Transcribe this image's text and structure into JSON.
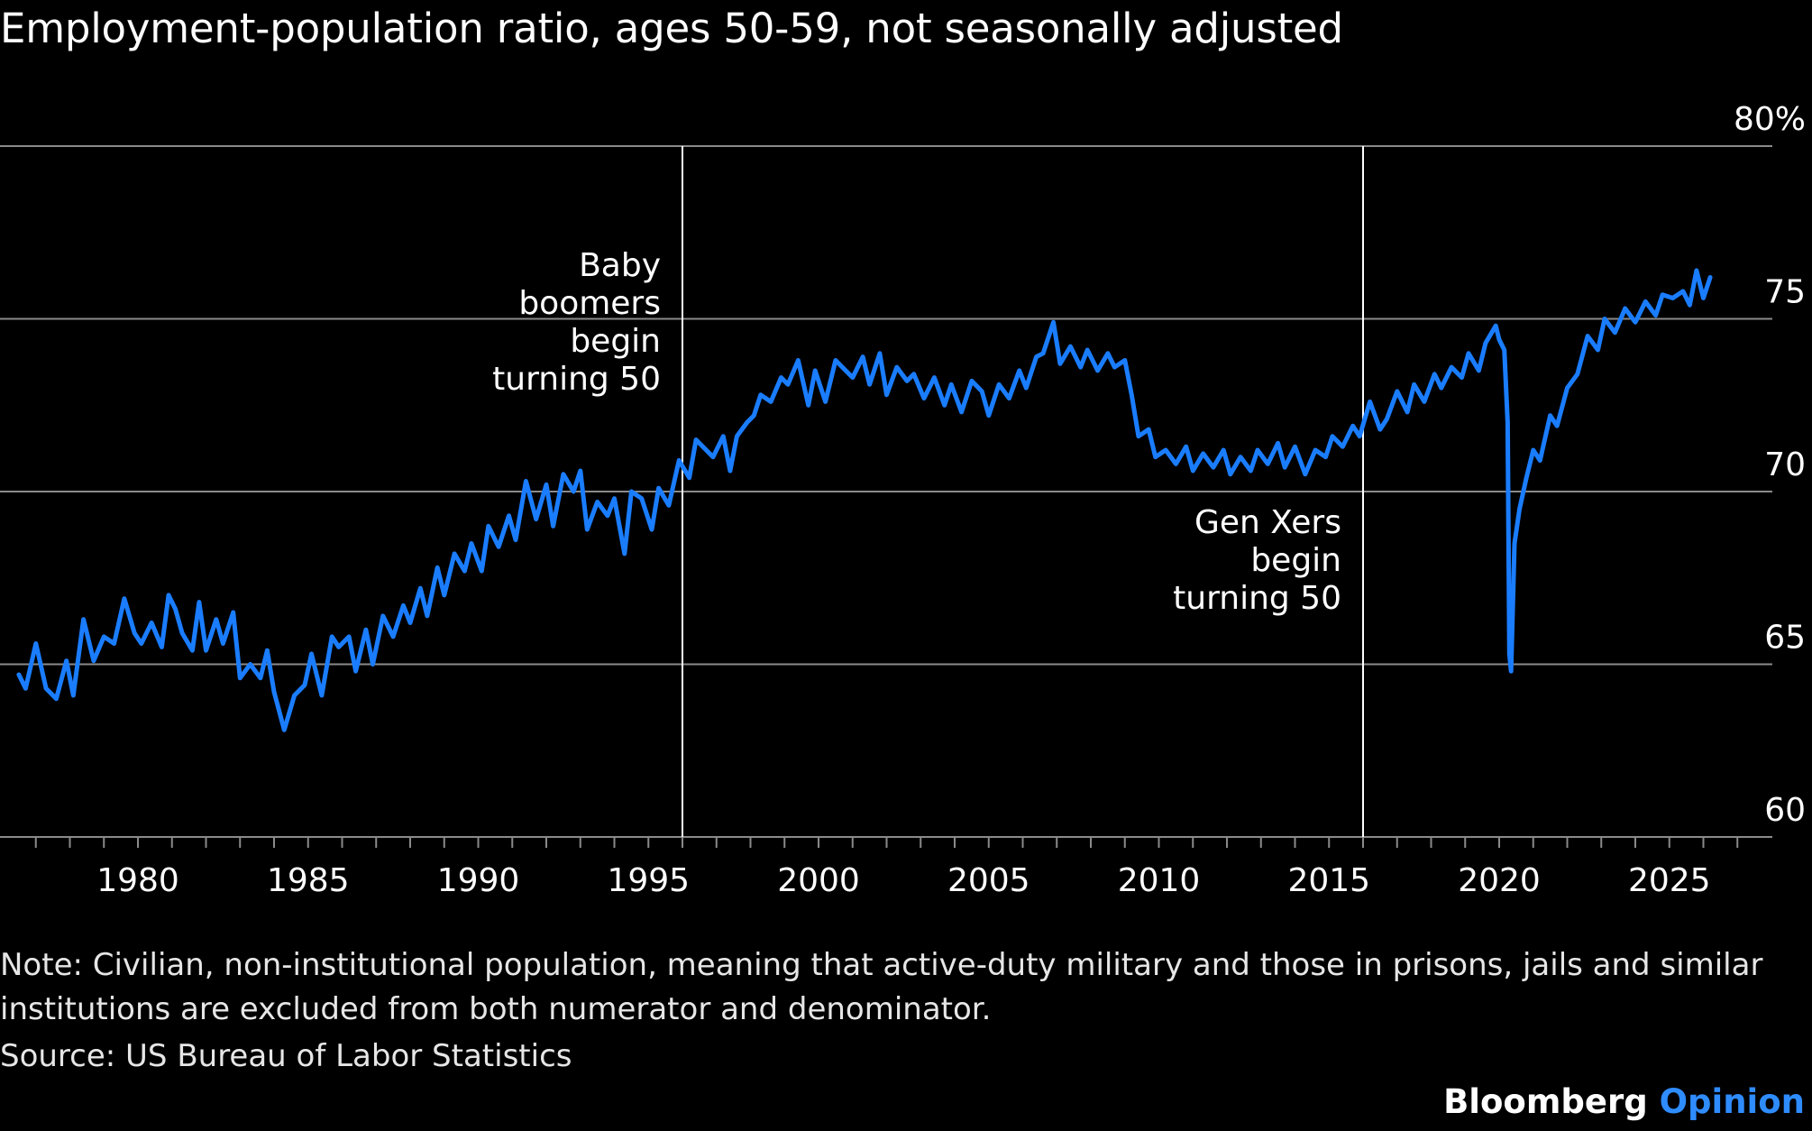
{
  "title": "Employment-population ratio, ages 50-59, not seasonally adjusted",
  "note": "Note: Civilian, non-institutional population, meaning that active-duty military and those in prisons, jails and similar institutions are excluded from both numerator and denominator.",
  "source": "Source: US Bureau of Labor Statistics",
  "brand": {
    "name": "Bloomberg",
    "product": "Opinion"
  },
  "colors": {
    "background": "#000000",
    "line": "#1a7dff",
    "grid": "#8a8a8a",
    "text": "#ffffff",
    "brand_accent": "#2f8cff"
  },
  "chart_data": {
    "type": "line",
    "x_unit": "year",
    "y_unit": "percent",
    "xlim": [
      1976.5,
      2027.7
    ],
    "ylim": [
      60,
      80
    ],
    "y_ticks": [
      60,
      65,
      70,
      75,
      80
    ],
    "y_tick_labels": [
      "60",
      "65",
      "70",
      "75",
      "80%"
    ],
    "x_ticks": [
      1980,
      1985,
      1990,
      1995,
      2000,
      2005,
      2010,
      2015,
      2020,
      2025
    ],
    "x_tick_labels": [
      "1980",
      "1985",
      "1990",
      "1995",
      "2000",
      "2005",
      "2010",
      "2015",
      "2020",
      "2025"
    ],
    "grid": "horizontal",
    "annotations": [
      {
        "x": 1996,
        "label_lines": [
          "Baby",
          "boomers",
          "begin",
          "turning 50"
        ]
      },
      {
        "x": 2016,
        "label_lines": [
          "Gen Xers",
          "begin",
          "turning 50"
        ]
      }
    ],
    "series": [
      {
        "points": [
          [
            1976.5,
            64.7
          ],
          [
            1976.7,
            64.3
          ],
          [
            1977.0,
            65.6
          ],
          [
            1977.3,
            64.3
          ],
          [
            1977.6,
            64.0
          ],
          [
            1977.9,
            65.1
          ],
          [
            1978.1,
            64.1
          ],
          [
            1978.4,
            66.3
          ],
          [
            1978.7,
            65.1
          ],
          [
            1979.0,
            65.8
          ],
          [
            1979.3,
            65.6
          ],
          [
            1979.6,
            66.9
          ],
          [
            1979.9,
            65.9
          ],
          [
            1980.1,
            65.6
          ],
          [
            1980.4,
            66.2
          ],
          [
            1980.7,
            65.5
          ],
          [
            1980.9,
            67.0
          ],
          [
            1981.1,
            66.6
          ],
          [
            1981.3,
            65.9
          ],
          [
            1981.6,
            65.4
          ],
          [
            1981.8,
            66.8
          ],
          [
            1982.0,
            65.4
          ],
          [
            1982.3,
            66.3
          ],
          [
            1982.5,
            65.6
          ],
          [
            1982.8,
            66.5
          ],
          [
            1983.0,
            64.6
          ],
          [
            1983.3,
            65.0
          ],
          [
            1983.6,
            64.6
          ],
          [
            1983.8,
            65.4
          ],
          [
            1984.0,
            64.2
          ],
          [
            1984.3,
            63.1
          ],
          [
            1984.6,
            64.1
          ],
          [
            1984.9,
            64.4
          ],
          [
            1985.1,
            65.3
          ],
          [
            1985.4,
            64.1
          ],
          [
            1985.7,
            65.8
          ],
          [
            1985.9,
            65.5
          ],
          [
            1986.2,
            65.8
          ],
          [
            1986.4,
            64.8
          ],
          [
            1986.7,
            66.0
          ],
          [
            1986.9,
            65.0
          ],
          [
            1987.2,
            66.4
          ],
          [
            1987.5,
            65.8
          ],
          [
            1987.8,
            66.7
          ],
          [
            1988.0,
            66.2
          ],
          [
            1988.3,
            67.2
          ],
          [
            1988.5,
            66.4
          ],
          [
            1988.8,
            67.8
          ],
          [
            1989.0,
            67.0
          ],
          [
            1989.3,
            68.2
          ],
          [
            1989.6,
            67.7
          ],
          [
            1989.8,
            68.5
          ],
          [
            1990.1,
            67.7
          ],
          [
            1990.3,
            69.0
          ],
          [
            1990.6,
            68.4
          ],
          [
            1990.9,
            69.3
          ],
          [
            1991.1,
            68.6
          ],
          [
            1991.4,
            70.3
          ],
          [
            1991.7,
            69.2
          ],
          [
            1992.0,
            70.2
          ],
          [
            1992.2,
            69.0
          ],
          [
            1992.5,
            70.5
          ],
          [
            1992.8,
            70.0
          ],
          [
            1993.0,
            70.6
          ],
          [
            1993.2,
            68.9
          ],
          [
            1993.5,
            69.7
          ],
          [
            1993.8,
            69.3
          ],
          [
            1994.0,
            69.8
          ],
          [
            1994.3,
            68.2
          ],
          [
            1994.5,
            70.0
          ],
          [
            1994.8,
            69.8
          ],
          [
            1995.1,
            68.9
          ],
          [
            1995.3,
            70.1
          ],
          [
            1995.6,
            69.6
          ],
          [
            1995.9,
            70.9
          ],
          [
            1996.2,
            70.4
          ],
          [
            1996.4,
            71.5
          ],
          [
            1996.7,
            71.2
          ],
          [
            1996.9,
            71.0
          ],
          [
            1997.2,
            71.6
          ],
          [
            1997.4,
            70.6
          ],
          [
            1997.6,
            71.6
          ],
          [
            1997.9,
            72.0
          ],
          [
            1998.1,
            72.2
          ],
          [
            1998.3,
            72.8
          ],
          [
            1998.6,
            72.6
          ],
          [
            1998.9,
            73.3
          ],
          [
            1999.1,
            73.1
          ],
          [
            1999.4,
            73.8
          ],
          [
            1999.7,
            72.5
          ],
          [
            1999.9,
            73.5
          ],
          [
            2000.2,
            72.6
          ],
          [
            2000.5,
            73.8
          ],
          [
            2000.7,
            73.6
          ],
          [
            2001.0,
            73.3
          ],
          [
            2001.3,
            73.9
          ],
          [
            2001.5,
            73.1
          ],
          [
            2001.8,
            74.0
          ],
          [
            2002.0,
            72.8
          ],
          [
            2002.3,
            73.6
          ],
          [
            2002.6,
            73.2
          ],
          [
            2002.8,
            73.4
          ],
          [
            2003.1,
            72.7
          ],
          [
            2003.4,
            73.3
          ],
          [
            2003.7,
            72.5
          ],
          [
            2003.9,
            73.1
          ],
          [
            2004.2,
            72.3
          ],
          [
            2004.5,
            73.2
          ],
          [
            2004.8,
            72.9
          ],
          [
            2005.0,
            72.2
          ],
          [
            2005.3,
            73.1
          ],
          [
            2005.6,
            72.7
          ],
          [
            2005.9,
            73.5
          ],
          [
            2006.1,
            73.0
          ],
          [
            2006.4,
            73.9
          ],
          [
            2006.6,
            74.0
          ],
          [
            2006.9,
            74.9
          ],
          [
            2007.1,
            73.7
          ],
          [
            2007.4,
            74.2
          ],
          [
            2007.7,
            73.6
          ],
          [
            2007.9,
            74.1
          ],
          [
            2008.2,
            73.5
          ],
          [
            2008.5,
            74.0
          ],
          [
            2008.7,
            73.6
          ],
          [
            2009.0,
            73.8
          ],
          [
            2009.2,
            72.8
          ],
          [
            2009.4,
            71.6
          ],
          [
            2009.7,
            71.8
          ],
          [
            2009.9,
            71.0
          ],
          [
            2010.2,
            71.2
          ],
          [
            2010.5,
            70.8
          ],
          [
            2010.8,
            71.3
          ],
          [
            2011.0,
            70.6
          ],
          [
            2011.3,
            71.1
          ],
          [
            2011.6,
            70.7
          ],
          [
            2011.9,
            71.2
          ],
          [
            2012.1,
            70.5
          ],
          [
            2012.4,
            71.0
          ],
          [
            2012.7,
            70.6
          ],
          [
            2012.9,
            71.2
          ],
          [
            2013.2,
            70.8
          ],
          [
            2013.5,
            71.4
          ],
          [
            2013.7,
            70.7
          ],
          [
            2014.0,
            71.3
          ],
          [
            2014.3,
            70.5
          ],
          [
            2014.6,
            71.2
          ],
          [
            2014.9,
            71.0
          ],
          [
            2015.1,
            71.6
          ],
          [
            2015.4,
            71.3
          ],
          [
            2015.7,
            71.9
          ],
          [
            2015.9,
            71.6
          ],
          [
            2016.2,
            72.6
          ],
          [
            2016.5,
            71.8
          ],
          [
            2016.7,
            72.1
          ],
          [
            2017.0,
            72.9
          ],
          [
            2017.3,
            72.3
          ],
          [
            2017.5,
            73.1
          ],
          [
            2017.8,
            72.6
          ],
          [
            2018.1,
            73.4
          ],
          [
            2018.3,
            73.0
          ],
          [
            2018.6,
            73.6
          ],
          [
            2018.9,
            73.3
          ],
          [
            2019.1,
            74.0
          ],
          [
            2019.4,
            73.5
          ],
          [
            2019.6,
            74.3
          ],
          [
            2019.9,
            74.8
          ],
          [
            2020.0,
            74.4
          ],
          [
            2020.15,
            74.1
          ],
          [
            2020.25,
            72.0
          ],
          [
            2020.3,
            65.3
          ],
          [
            2020.35,
            64.8
          ],
          [
            2020.45,
            68.5
          ],
          [
            2020.6,
            69.5
          ],
          [
            2020.8,
            70.4
          ],
          [
            2021.0,
            71.2
          ],
          [
            2021.2,
            70.9
          ],
          [
            2021.5,
            72.2
          ],
          [
            2021.7,
            71.9
          ],
          [
            2022.0,
            73.0
          ],
          [
            2022.3,
            73.4
          ],
          [
            2022.6,
            74.5
          ],
          [
            2022.9,
            74.1
          ],
          [
            2023.1,
            75.0
          ],
          [
            2023.4,
            74.6
          ],
          [
            2023.7,
            75.3
          ],
          [
            2024.0,
            74.9
          ],
          [
            2024.3,
            75.5
          ],
          [
            2024.6,
            75.1
          ],
          [
            2024.8,
            75.7
          ],
          [
            2025.1,
            75.6
          ],
          [
            2025.4,
            75.8
          ],
          [
            2025.6,
            75.4
          ],
          [
            2025.8,
            76.4
          ],
          [
            2026.0,
            75.6
          ],
          [
            2026.2,
            76.2
          ]
        ]
      }
    ]
  }
}
